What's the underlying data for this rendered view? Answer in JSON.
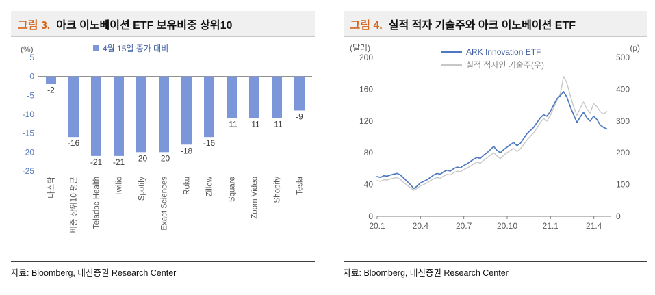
{
  "colors": {
    "figure_tag": "#d4641c",
    "bar": "#7b97d9",
    "bar_ytick": "#5b7bbd",
    "axis_gray": "#595959",
    "data_label": "#3f3f3f",
    "zero_line": "#808080",
    "ark_line": "#4d79c0",
    "tech_line": "#c7c7c7",
    "legend_text_blue": "#3f5fa0"
  },
  "chart_data": [
    {
      "type": "bar",
      "figure_label": "그림 3.",
      "title": "아크 이노베이션 ETF 보유비중 상위10",
      "unit_label": "(%)",
      "legend": "4월 15일 종가 대비",
      "categories": [
        "나스닥",
        "비중 상위10 평균",
        "Teladoc Health",
        "Twilio",
        "Spotify",
        "Exact Sciences",
        "Roku",
        "Zillow",
        "Square",
        "Zoom Video",
        "Shopify",
        "Tesla"
      ],
      "values": [
        -2,
        -16,
        -21,
        -21,
        -20,
        -20,
        -18,
        -16,
        -11,
        -11,
        -11,
        -9
      ],
      "ylim": [
        -25,
        5
      ],
      "yticks": [
        5,
        0,
        -5,
        -10,
        -15,
        -20,
        -25
      ],
      "grid": false,
      "legend_position": "top",
      "source": "자료: Bloomberg, 대신증권 Research Center"
    },
    {
      "type": "line",
      "figure_label": "그림 4.",
      "title": "실적 적자 기술주와 아크 이노베이션 ETF",
      "left_unit": "(달러)",
      "right_unit": "(p)",
      "left_ylim": [
        0,
        200
      ],
      "left_yticks": [
        200,
        160,
        120,
        80,
        40,
        0
      ],
      "right_ylim": [
        0,
        500
      ],
      "right_yticks": [
        500,
        400,
        300,
        200,
        100,
        0
      ],
      "xtick_labels": [
        "20.1",
        "20.4",
        "20.7",
        "20.10",
        "21.1",
        "21.4"
      ],
      "xtick_months": [
        0,
        3,
        6,
        9,
        12,
        15
      ],
      "x_range_months": [
        0,
        16.2
      ],
      "x_end_months": 15.9,
      "grid": false,
      "legend_position": "top",
      "series": [
        {
          "name": "ARK Innovation ETF",
          "axis": "left",
          "values": [
            50,
            49,
            51,
            50.5,
            52,
            53,
            54,
            52,
            48,
            44,
            40,
            35,
            38,
            42,
            44,
            46,
            49,
            52,
            54,
            53,
            56,
            58,
            57,
            60,
            62,
            61,
            64,
            66,
            69,
            72,
            74,
            73,
            77,
            80,
            84,
            88,
            83,
            80,
            84,
            87,
            90,
            93,
            89,
            92,
            98,
            104,
            108,
            112,
            118,
            124,
            128,
            126,
            132,
            140,
            148,
            152,
            157,
            150,
            138,
            128,
            118,
            125,
            131,
            124,
            120,
            126,
            122,
            115,
            112,
            110
          ]
        },
        {
          "name": "실적 적자인 기술주(우)",
          "axis": "right",
          "values": [
            112,
            110,
            115,
            114,
            118,
            120,
            122,
            116,
            106,
            98,
            90,
            82,
            88,
            96,
            100,
            105,
            112,
            118,
            122,
            120,
            127,
            132,
            130,
            137,
            142,
            140,
            147,
            152,
            158,
            165,
            170,
            167,
            176,
            184,
            192,
            200,
            190,
            182,
            192,
            200,
            207,
            214,
            204,
            212,
            226,
            240,
            252,
            262,
            278,
            295,
            308,
            300,
            318,
            340,
            365,
            385,
            440,
            420,
            380,
            345,
            318,
            340,
            360,
            338,
            325,
            355,
            345,
            330,
            322,
            330
          ]
        }
      ],
      "source": "자료: Bloomberg, 대신증권 Research Center"
    }
  ]
}
